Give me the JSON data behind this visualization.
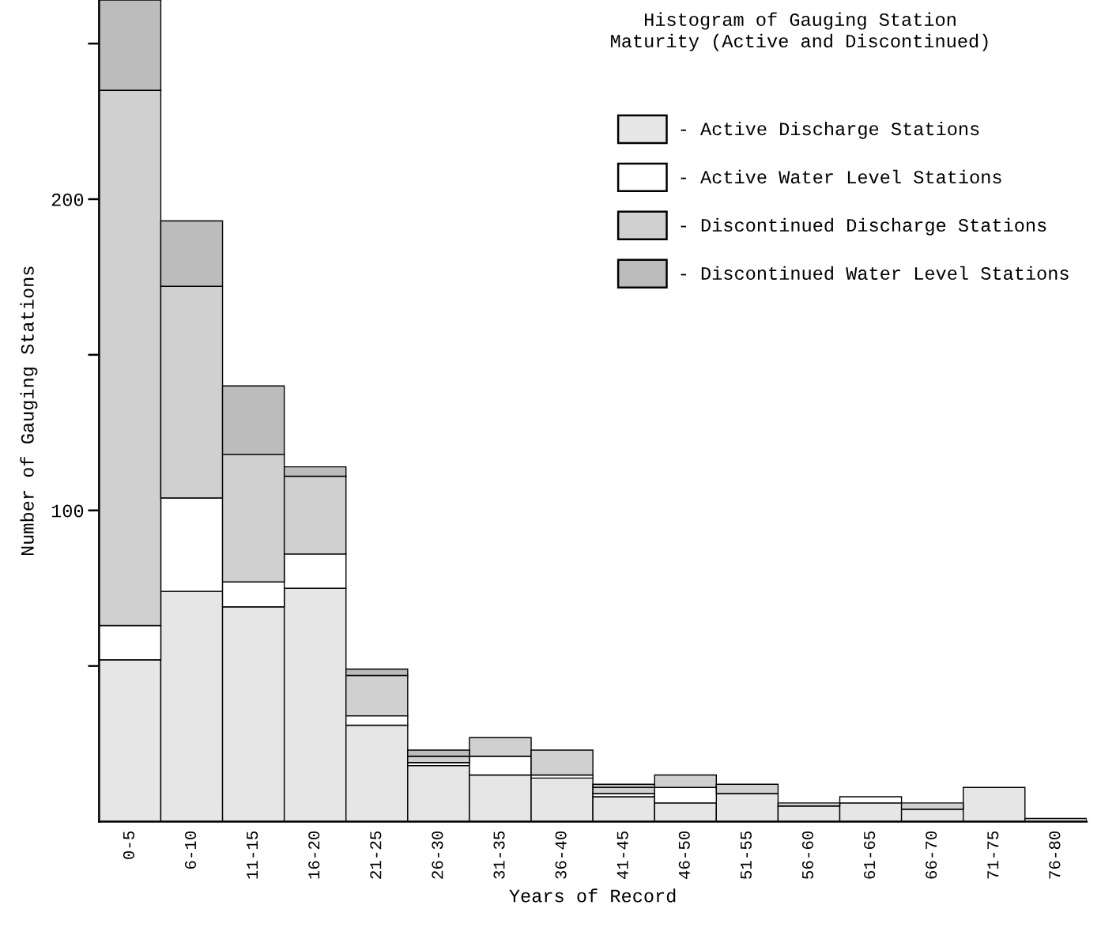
{
  "chart_data": {
    "type": "bar",
    "stacked": true,
    "title": "Histogram of Gauging Station\nMaturity (Active and Discontinued)",
    "xlabel": "Years of Record",
    "ylabel": "Number of Gauging Stations",
    "categories": [
      "0-5",
      "6-10",
      "11-15",
      "16-20",
      "21-25",
      "26-30",
      "31-35",
      "36-40",
      "41-45",
      "46-50",
      "51-55",
      "56-60",
      "61-65",
      "66-70",
      "71-75",
      "76-80"
    ],
    "series": [
      {
        "name": "- Active Discharge Stations",
        "color": "#e6e6e6",
        "values": [
          52,
          74,
          69,
          75,
          31,
          18,
          15,
          14,
          8,
          6,
          9,
          5,
          6,
          4,
          11,
          1
        ]
      },
      {
        "name": "- Active Water Level Stations",
        "color": "#ffffff",
        "values": [
          11,
          30,
          8,
          11,
          3,
          1,
          6,
          1,
          1,
          5,
          0,
          0,
          2,
          0,
          0,
          0
        ]
      },
      {
        "name": "- Discontinued Discharge Stations",
        "color": "#d0d0d0",
        "values": [
          172,
          68,
          41,
          25,
          13,
          2,
          6,
          8,
          2,
          4,
          3,
          1,
          0,
          2,
          0,
          0
        ]
      },
      {
        "name": "- Discontinued Water Level Stations",
        "color": "#bcbcbc",
        "values": [
          29,
          21,
          22,
          3,
          2,
          2,
          0,
          0,
          1,
          0,
          0,
          0,
          0,
          0,
          0,
          0
        ]
      }
    ],
    "ylim": [
      0,
      264
    ],
    "yticks": [
      {
        "value": 50,
        "label": null
      },
      100,
      {
        "value": 150,
        "label": null
      },
      200,
      {
        "value": 250,
        "label": null
      }
    ],
    "grid": false,
    "legend": "top right"
  }
}
